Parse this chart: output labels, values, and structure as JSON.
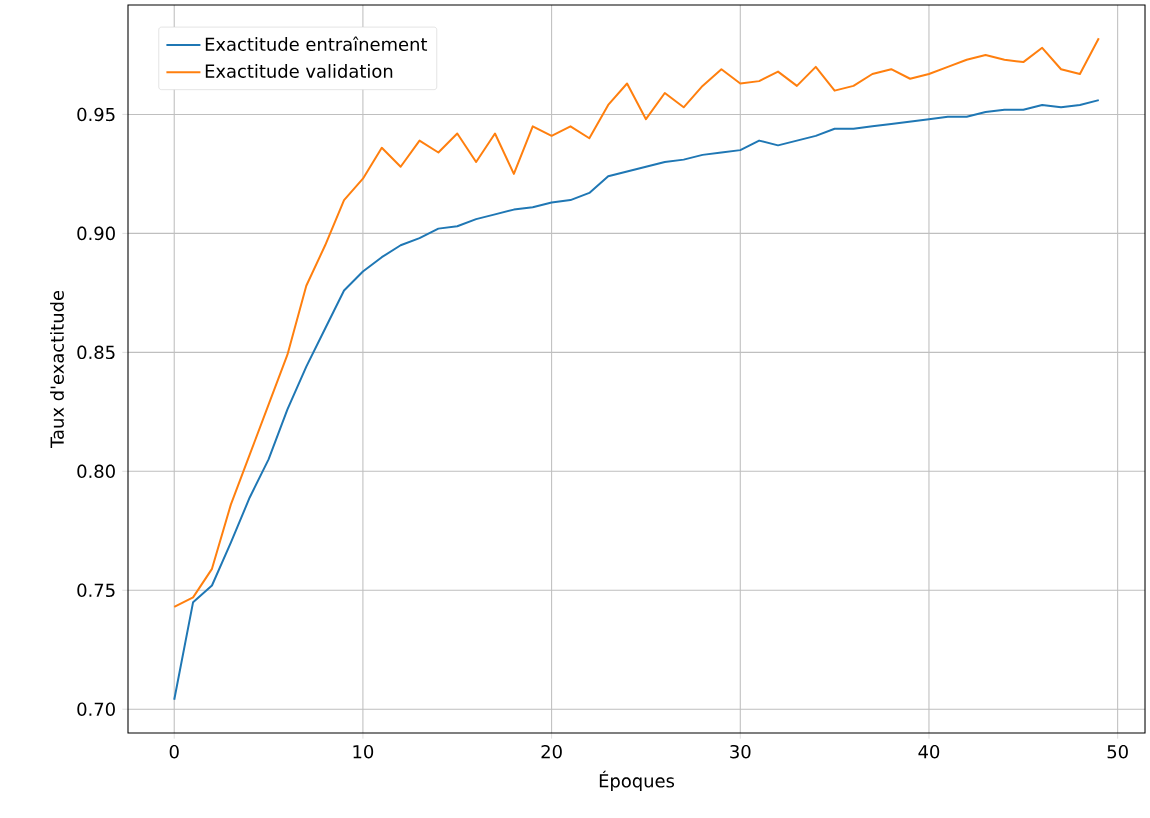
{
  "chart_data": {
    "type": "line",
    "xlabel": "Époques",
    "ylabel": "Taux d'exactitude",
    "x": [
      0,
      1,
      2,
      3,
      4,
      5,
      6,
      7,
      8,
      9,
      10,
      11,
      12,
      13,
      14,
      15,
      16,
      17,
      18,
      19,
      20,
      21,
      22,
      23,
      24,
      25,
      26,
      27,
      28,
      29,
      30,
      31,
      32,
      33,
      34,
      35,
      36,
      37,
      38,
      39,
      40,
      41,
      42,
      43,
      44,
      45,
      46,
      47,
      48,
      49
    ],
    "series": [
      {
        "name": "Exactitude entraînement",
        "color": "#1f77b4",
        "values": [
          0.704,
          0.745,
          0.752,
          0.77,
          0.789,
          0.805,
          0.826,
          0.844,
          0.86,
          0.876,
          0.884,
          0.89,
          0.895,
          0.898,
          0.902,
          0.903,
          0.906,
          0.908,
          0.91,
          0.911,
          0.913,
          0.914,
          0.917,
          0.924,
          0.926,
          0.928,
          0.93,
          0.931,
          0.933,
          0.934,
          0.935,
          0.939,
          0.937,
          0.939,
          0.941,
          0.944,
          0.944,
          0.945,
          0.946,
          0.947,
          0.948,
          0.949,
          0.949,
          0.951,
          0.952,
          0.952,
          0.954,
          0.953,
          0.954,
          0.956
        ]
      },
      {
        "name": "Exactitude validation",
        "color": "#ff7f0e",
        "values": [
          0.743,
          0.747,
          0.759,
          0.786,
          0.807,
          0.828,
          0.849,
          0.878,
          0.895,
          0.914,
          0.923,
          0.936,
          0.928,
          0.939,
          0.934,
          0.942,
          0.93,
          0.942,
          0.925,
          0.945,
          0.941,
          0.945,
          0.94,
          0.954,
          0.963,
          0.948,
          0.959,
          0.953,
          0.962,
          0.969,
          0.963,
          0.964,
          0.968,
          0.962,
          0.97,
          0.96,
          0.962,
          0.967,
          0.969,
          0.965,
          0.967,
          0.97,
          0.973,
          0.975,
          0.973,
          0.972,
          0.978,
          0.969,
          0.967,
          0.982
        ]
      }
    ],
    "xlim": [
      -2.45,
      51.45
    ],
    "ylim": [
      0.69,
      0.996
    ],
    "xticks": [
      0,
      10,
      20,
      30,
      40,
      50
    ],
    "yticks": [
      {
        "value": 0.7,
        "label": "0.70"
      },
      {
        "value": 0.75,
        "label": "0.75"
      },
      {
        "value": 0.8,
        "label": "0.80"
      },
      {
        "value": 0.85,
        "label": "0.85"
      },
      {
        "value": 0.9,
        "label": "0.90"
      },
      {
        "value": 0.95,
        "label": "0.95"
      }
    ],
    "grid": true,
    "legend": "top left",
    "marker": "none",
    "line_style": "solid"
  }
}
